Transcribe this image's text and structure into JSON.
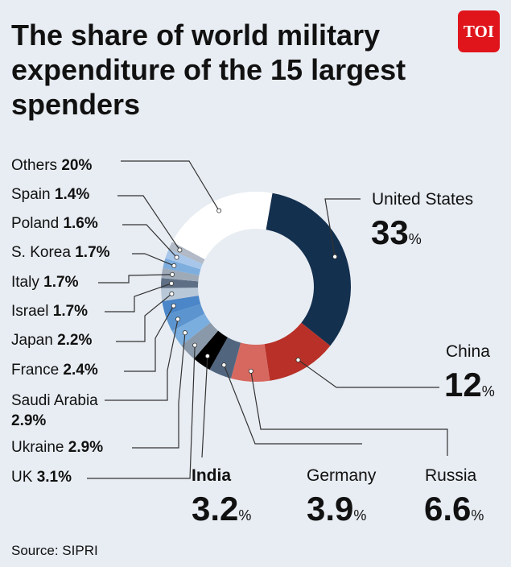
{
  "title": "The share of world military expenditure of the 15 largest spenders",
  "brand": "TOI",
  "source": "Source: SIPRI",
  "chart_data": {
    "type": "pie",
    "unit": "%",
    "slices": [
      {
        "name": "United States",
        "value": 33,
        "label": "33",
        "color": "#14304f"
      },
      {
        "name": "China",
        "value": 12,
        "label": "12",
        "color": "#b83027"
      },
      {
        "name": "Russia",
        "value": 6.6,
        "label": "6.6",
        "color": "#d7685f"
      },
      {
        "name": "Germany",
        "value": 3.9,
        "label": "3.9",
        "color": "#51657f"
      },
      {
        "name": "India",
        "value": 3.2,
        "label": "3.2",
        "color": "#000000"
      },
      {
        "name": "UK",
        "value": 3.1,
        "label": "3.1",
        "color": "#8a99aa"
      },
      {
        "name": "Ukraine",
        "value": 2.9,
        "label": "2.9",
        "color": "#7aaedf"
      },
      {
        "name": "Saudi Arabia",
        "value": 2.9,
        "label": "2.9",
        "color": "#5c94cf"
      },
      {
        "name": "France",
        "value": 2.4,
        "label": "2.4",
        "color": "#4a86c8"
      },
      {
        "name": "Japan",
        "value": 2.2,
        "label": "2.2",
        "color": "#b9c8d8"
      },
      {
        "name": "Israel",
        "value": 1.7,
        "label": "1.7",
        "color": "#5e6f85"
      },
      {
        "name": "Italy",
        "value": 1.7,
        "label": "1.7",
        "color": "#9eaab8"
      },
      {
        "name": "S. Korea",
        "value": 1.7,
        "label": "1.7",
        "color": "#7eaede"
      },
      {
        "name": "Poland",
        "value": 1.6,
        "label": "1.6",
        "color": "#a8c6ea"
      },
      {
        "name": "Spain",
        "value": 1.4,
        "label": "1.4",
        "color": "#b1bac6"
      },
      {
        "name": "Others",
        "value": 20,
        "label": "20",
        "color": "#ffffff"
      }
    ]
  }
}
